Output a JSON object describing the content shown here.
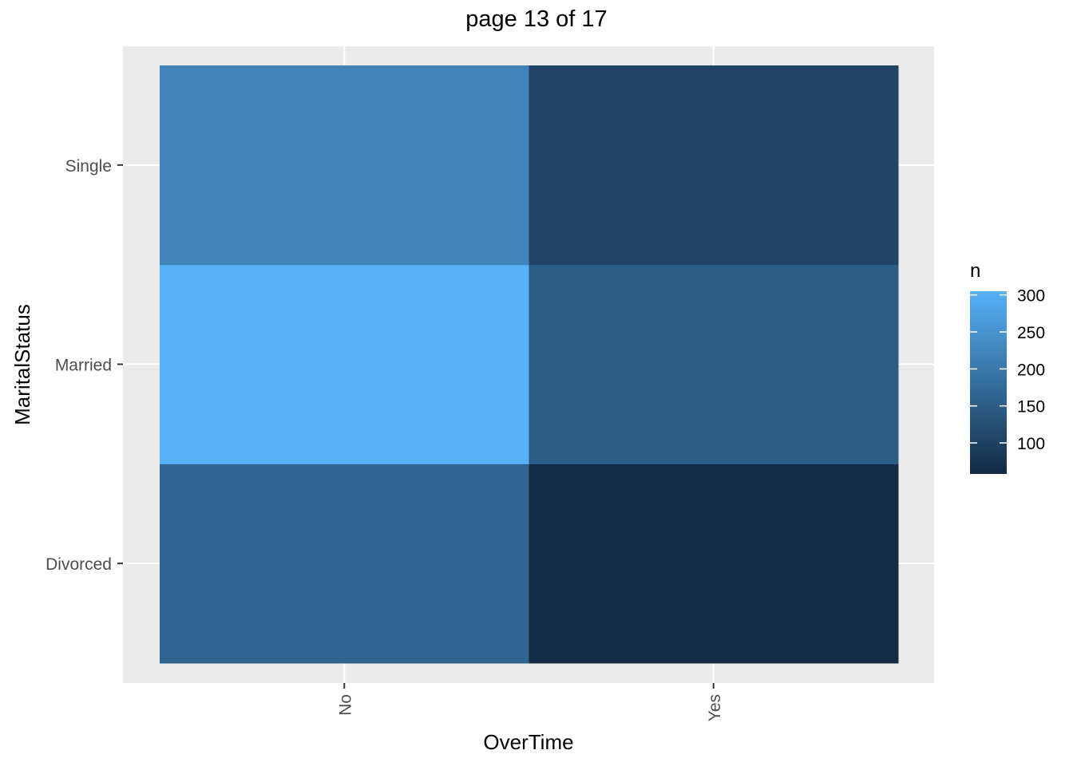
{
  "chart_data": {
    "type": "heatmap",
    "title": "page 13 of 17",
    "xlabel": "OverTime",
    "ylabel": "MaritalStatus",
    "x_categories": [
      "No",
      "Yes"
    ],
    "y_categories": [
      "Divorced",
      "Married",
      "Single"
    ],
    "cells": [
      {
        "x": "No",
        "y": "Divorced",
        "n": 165
      },
      {
        "x": "Yes",
        "y": "Divorced",
        "n": 62
      },
      {
        "x": "No",
        "y": "Married",
        "n": 305
      },
      {
        "x": "Yes",
        "y": "Married",
        "n": 150
      },
      {
        "x": "No",
        "y": "Single",
        "n": 220
      },
      {
        "x": "Yes",
        "y": "Single",
        "n": 105
      }
    ],
    "legend": {
      "title": "n",
      "ticks": [
        100,
        150,
        200,
        250,
        300
      ],
      "range": [
        58,
        305
      ],
      "low_color": "#132b43",
      "high_color": "#56b1f7",
      "placement": "right"
    },
    "grid": true,
    "panel_background": "#ebebeb"
  }
}
